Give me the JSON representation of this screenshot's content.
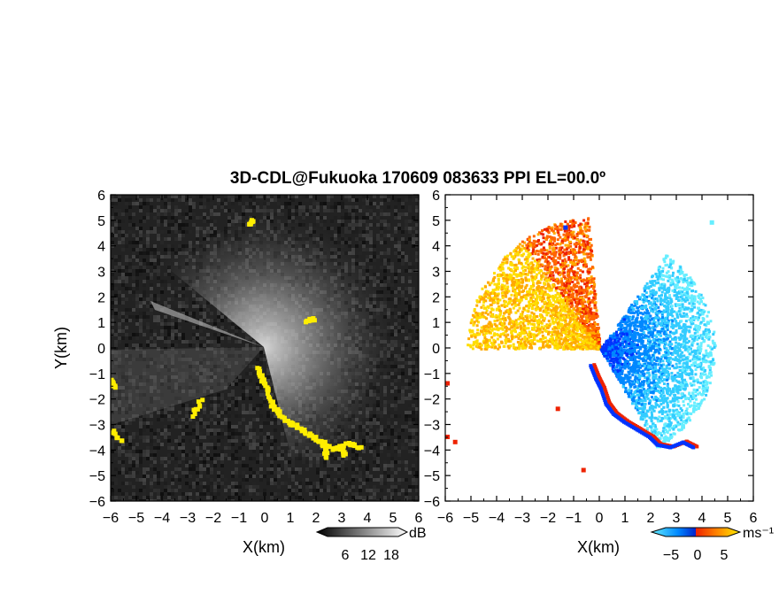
{
  "chart_data": {
    "title": "3D-CDL@Fukuoka 170609 083633 PPI EL=00.0º",
    "panels": [
      {
        "type": "heatmap",
        "name": "reflectivity",
        "xlabel": "X(km)",
        "ylabel": "Y(km)",
        "xlim": [
          -6,
          6
        ],
        "ylim": [
          -6,
          6
        ],
        "xticks": [
          "−6",
          "−5",
          "−4",
          "−3",
          "−2",
          "−1",
          "0",
          "1",
          "2",
          "3",
          "4",
          "5",
          "6"
        ],
        "yticks": [
          "6",
          "5",
          "4",
          "3",
          "2",
          "1",
          "0",
          "−1",
          "−2",
          "−3",
          "−4",
          "−5",
          "−6"
        ],
        "background": "#222222",
        "highlight_color": "#ffee00",
        "colorbar": {
          "unit": "dB",
          "ticks": [
            "6",
            "12",
            "18"
          ],
          "range": [
            0,
            24
          ]
        }
      },
      {
        "type": "heatmap",
        "name": "doppler-velocity",
        "xlabel": "X(km)",
        "xlim": [
          -6,
          6
        ],
        "ylim": [
          -6,
          6
        ],
        "xticks": [
          "−6",
          "−5",
          "−4",
          "−3",
          "−2",
          "−1",
          "0",
          "1",
          "2",
          "3",
          "4",
          "5",
          "6"
        ],
        "yticks": [
          "6",
          "5",
          "4",
          "3",
          "2",
          "1",
          "0",
          "−1",
          "−2",
          "−3",
          "−4",
          "−5",
          "−6"
        ],
        "background": "#ffffff",
        "colorbar": {
          "unit": "ms⁻¹",
          "ticks": [
            "−5",
            "0",
            "5"
          ],
          "range": [
            -7,
            7
          ]
        }
      }
    ]
  },
  "colors": {
    "approach": [
      "#0033ff",
      "#0088ff",
      "#33ccff",
      "#66eeff"
    ],
    "recede": [
      "#ffdd00",
      "#ffaa00",
      "#ff6600",
      "#ee2200"
    ]
  }
}
